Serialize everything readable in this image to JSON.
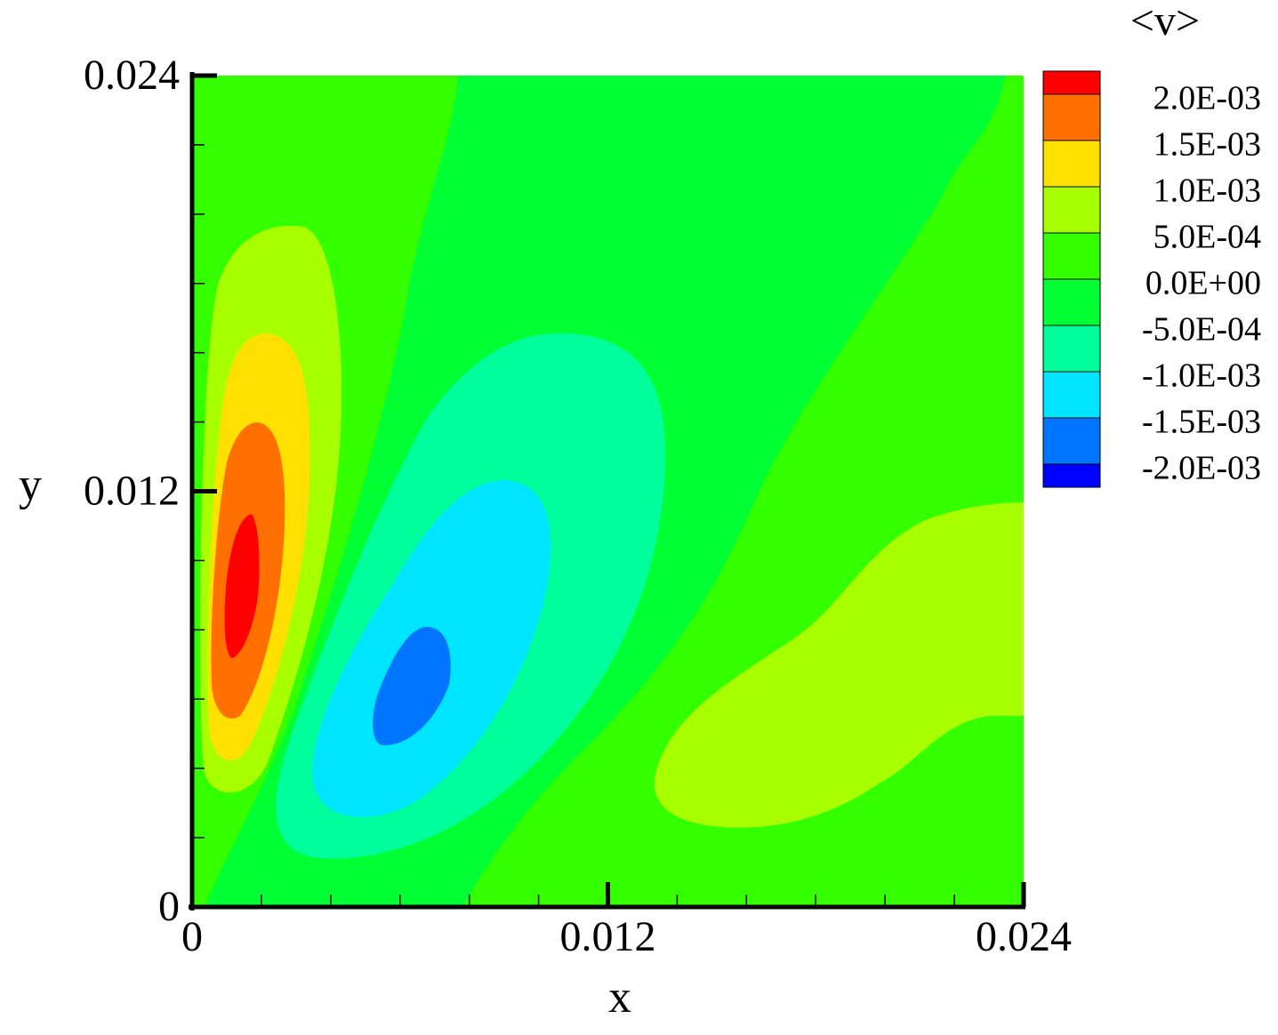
{
  "chart_data": {
    "type": "contour",
    "title": "<v>",
    "xlabel": "x",
    "ylabel": "y",
    "xlim": [
      0,
      0.024
    ],
    "ylim": [
      0,
      0.024
    ],
    "xticks": [
      0,
      0.012,
      0.024
    ],
    "yticks": [
      0,
      0.012,
      0.024
    ],
    "xminorticks": [
      0.002,
      0.004,
      0.006,
      0.008,
      0.01,
      0.014,
      0.016,
      0.018,
      0.02,
      0.022
    ],
    "yminorticks": [
      0.002,
      0.004,
      0.006,
      0.008,
      0.01,
      0.014,
      0.016,
      0.018,
      0.02,
      0.022
    ],
    "levels": [
      {
        "value": 0.002,
        "label": "2.0E-03"
      },
      {
        "value": 0.0015,
        "label": "1.5E-03"
      },
      {
        "value": 0.001,
        "label": "1.0E-03"
      },
      {
        "value": 0.0005,
        "label": "5.0E-04"
      },
      {
        "value": 0,
        "label": "0.0E+00"
      },
      {
        "value": -0.0005,
        "label": "-5.0E-04"
      },
      {
        "value": -0.001,
        "label": "-1.0E-03"
      },
      {
        "value": -0.0015,
        "label": "-1.5E-03"
      },
      {
        "value": -0.002,
        "label": "-2.0E-03"
      }
    ],
    "band_colors": [
      "#ff0000",
      "#ff7000",
      "#ffe000",
      "#a8ff00",
      "#33ff00",
      "#00ff33",
      "#00ff9c",
      "#00e5ff",
      "#0075ff",
      "#0000ff"
    ],
    "legend": "top-right"
  }
}
